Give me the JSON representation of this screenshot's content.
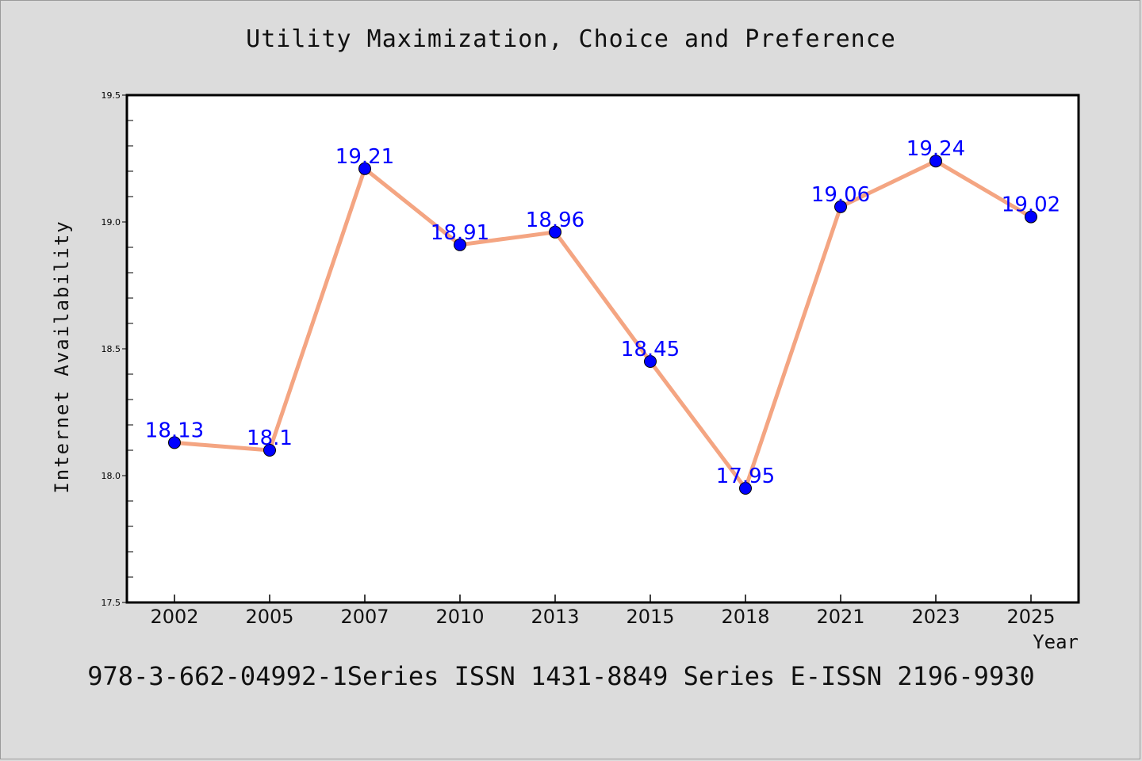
{
  "chart_data": {
    "type": "line",
    "title": "Utility Maximization, Choice and Preference",
    "xlabel": "Year",
    "ylabel": "Internet Availability",
    "categories": [
      "2002",
      "2005",
      "2007",
      "2010",
      "2013",
      "2015",
      "2018",
      "2021",
      "2023",
      "2025"
    ],
    "series": [
      {
        "values": [
          18.13,
          18.1,
          19.21,
          18.91,
          18.96,
          18.45,
          17.95,
          19.06,
          19.24,
          19.02
        ]
      }
    ],
    "data_labels": [
      "18.13",
      "18.1",
      "19.21",
      "18.91",
      "18.96",
      "18.45",
      "17.95",
      "19.06",
      "19.24",
      "19.02"
    ],
    "ylim": [
      17.5,
      19.5
    ],
    "yticks": [
      "17.5",
      "18.0",
      "18.5",
      "19.0",
      "19.5"
    ],
    "grid": false,
    "legend": "none",
    "colors": {
      "line": "#f4a582",
      "marker": "#0000ff",
      "data_label": "#0000ff",
      "background": "#dcdcdc",
      "plot_background": "#ffffff"
    }
  },
  "footer": {
    "text": "978-3-662-04992-1Series ISSN 1431-8849 Series E-ISSN 2196-9930"
  }
}
